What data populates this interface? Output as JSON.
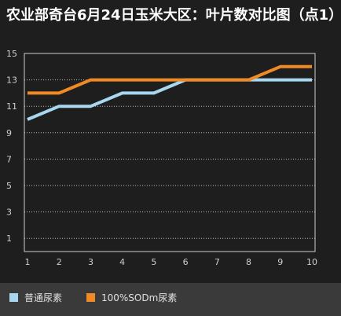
{
  "chart_data": {
    "type": "line",
    "title": "农业部奇台6月24日玉米大区：叶片数对比图（点1）",
    "xlabel": "",
    "ylabel": "",
    "x": [
      1,
      2,
      3,
      4,
      5,
      6,
      7,
      8,
      9,
      10
    ],
    "xlim": [
      1,
      10
    ],
    "ylim": [
      0,
      15
    ],
    "yticks": [
      1,
      3,
      5,
      7,
      9,
      11,
      13,
      15
    ],
    "grid": true,
    "legend_position": "bottom-left",
    "series": [
      {
        "name": "普通尿素",
        "color": "#a8d8f0",
        "values": [
          10,
          11,
          11,
          12,
          12,
          13,
          13,
          13,
          13,
          13
        ]
      },
      {
        "name": "100%SODm尿素",
        "color": "#f08a24",
        "values": [
          12,
          12,
          13,
          13,
          13,
          13,
          13,
          13,
          14,
          14
        ]
      }
    ]
  }
}
